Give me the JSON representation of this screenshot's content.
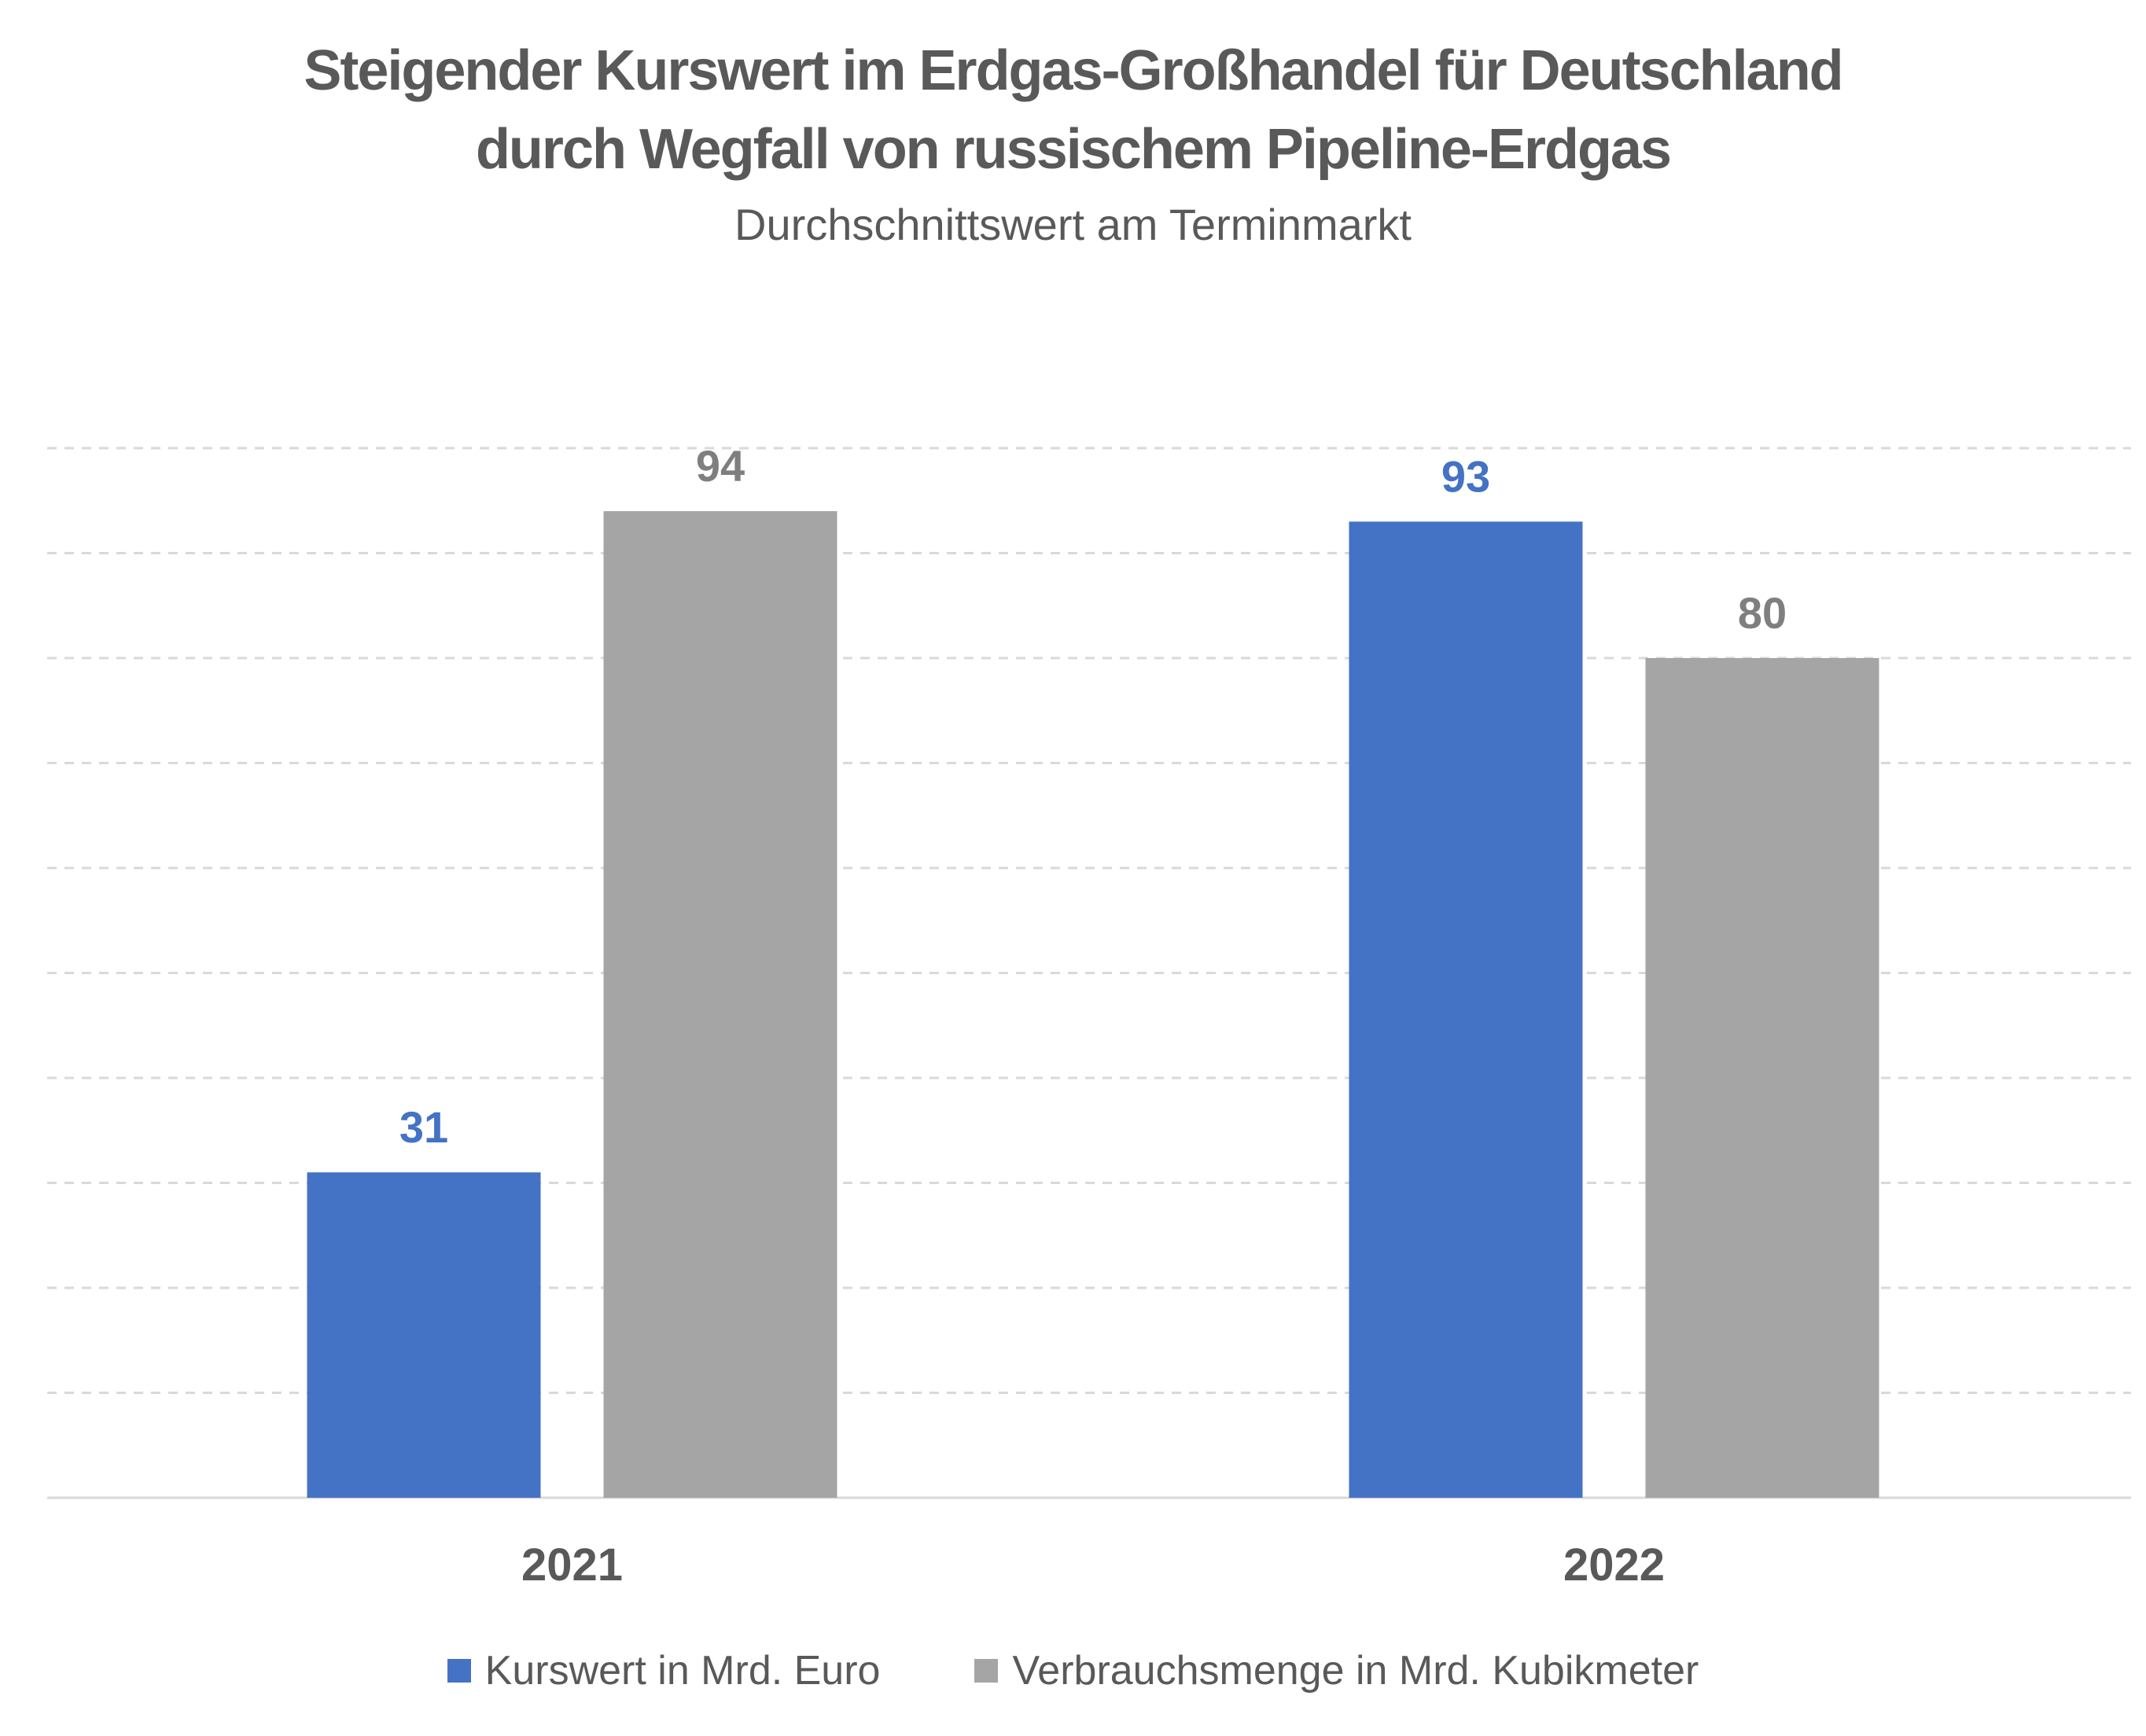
{
  "chart_data": {
    "type": "bar",
    "title_lines": [
      "Steigender Kurswert im Erdgas-Großhandel für Deutschland",
      "durch Wegfall von russischem Pipeline-Erdgas"
    ],
    "subtitle": "Durchschnittswert am Terminmarkt",
    "categories": [
      "2021",
      "2022"
    ],
    "series": [
      {
        "name": "Kurswert in Mrd. Euro",
        "values": [
          31,
          93
        ],
        "color": "#4472C4"
      },
      {
        "name": "Verbrauchsmenge in Mrd. Kubikmeter",
        "values": [
          94,
          80
        ],
        "color": "#A5A5A5"
      }
    ],
    "ylim": [
      0,
      100
    ],
    "grid": true,
    "legend_position": "bottom-center"
  }
}
